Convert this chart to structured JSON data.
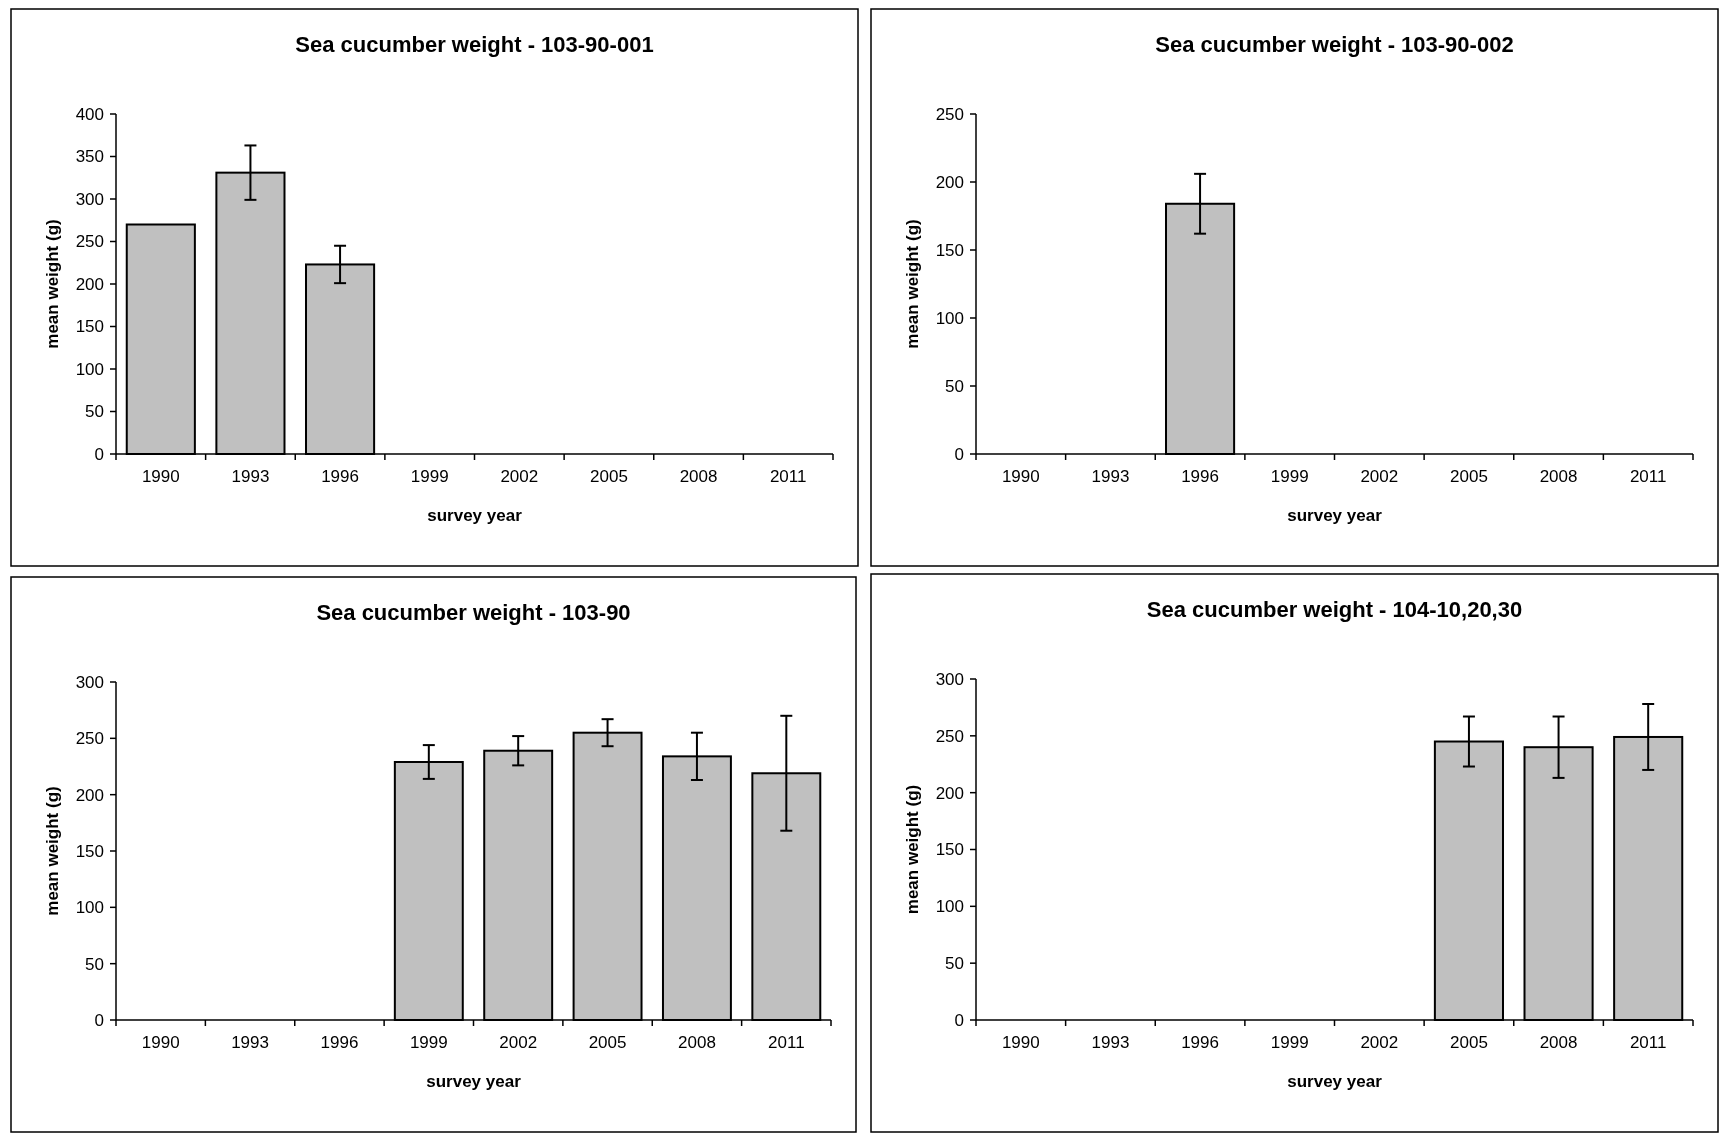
{
  "chart_data": [
    {
      "type": "bar",
      "title": "Sea cucumber weight - 103-90-001",
      "xlabel": "survey year",
      "ylabel": "mean weight (g)",
      "categories": [
        "1990",
        "1993",
        "1996",
        "1999",
        "2002",
        "2005",
        "2008",
        "2011"
      ],
      "series": [
        {
          "color": "#c0c0c0",
          "values": [
            270,
            331,
            223,
            null,
            null,
            null,
            null,
            null
          ],
          "errors": [
            null,
            32,
            22,
            null,
            null,
            null,
            null,
            null
          ]
        }
      ],
      "ylim": [
        0,
        400
      ],
      "yticks": [
        0,
        50,
        100,
        150,
        200,
        250,
        300,
        350,
        400
      ],
      "grid": false
    },
    {
      "type": "bar",
      "title": "Sea cucumber weight - 103-90-002",
      "xlabel": "survey year",
      "ylabel": "mean weight (g)",
      "categories": [
        "1990",
        "1993",
        "1996",
        "1999",
        "2002",
        "2005",
        "2008",
        "2011"
      ],
      "series": [
        {
          "color": "#c0c0c0",
          "values": [
            null,
            null,
            184,
            null,
            null,
            null,
            null,
            null
          ],
          "errors": [
            null,
            null,
            22,
            null,
            null,
            null,
            null,
            null
          ]
        }
      ],
      "ylim": [
        0,
        250
      ],
      "yticks": [
        0,
        50,
        100,
        150,
        200,
        250
      ],
      "grid": false
    },
    {
      "type": "bar",
      "title": "Sea cucumber weight - 103-90",
      "xlabel": "survey year",
      "ylabel": "mean weight (g)",
      "categories": [
        "1990",
        "1993",
        "1996",
        "1999",
        "2002",
        "2005",
        "2008",
        "2011"
      ],
      "series": [
        {
          "color": "#c0c0c0",
          "values": [
            null,
            null,
            null,
            229,
            239,
            255,
            234,
            219
          ],
          "errors": [
            null,
            null,
            null,
            15,
            13,
            12,
            21,
            51
          ]
        }
      ],
      "ylim": [
        0,
        300
      ],
      "yticks": [
        0,
        50,
        100,
        150,
        200,
        250,
        300
      ],
      "grid": false
    },
    {
      "type": "bar",
      "title": "Sea cucumber weight - 104-10,20,30",
      "xlabel": "survey year",
      "ylabel": "mean weight (g)",
      "categories": [
        "1990",
        "1993",
        "1996",
        "1999",
        "2002",
        "2005",
        "2008",
        "2011"
      ],
      "series": [
        {
          "color": "#c0c0c0",
          "values": [
            null,
            null,
            null,
            null,
            null,
            245,
            240,
            249
          ],
          "errors": [
            null,
            null,
            null,
            null,
            null,
            22,
            27,
            29
          ]
        }
      ],
      "ylim": [
        0,
        300
      ],
      "yticks": [
        0,
        50,
        100,
        150,
        200,
        250,
        300
      ],
      "grid": false
    }
  ]
}
